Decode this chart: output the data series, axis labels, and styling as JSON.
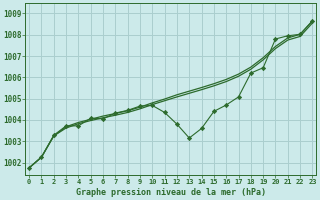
{
  "title": "Graphe pression niveau de la mer (hPa)",
  "bg_color": "#cceaea",
  "grid_color": "#aacece",
  "line_color": "#2d6b2d",
  "ylim": [
    1001.4,
    1009.5
  ],
  "yticks": [
    1002,
    1003,
    1004,
    1005,
    1006,
    1007,
    1008,
    1009
  ],
  "xlim": [
    -0.3,
    23.3
  ],
  "smooth1_x": [
    0,
    1,
    2,
    3,
    4,
    5,
    6,
    7,
    8,
    9,
    10,
    11,
    12,
    13,
    14,
    15,
    16,
    17,
    18,
    19,
    20,
    21,
    22,
    23
  ],
  "smooth1_y": [
    1001.75,
    1002.25,
    1003.25,
    1003.62,
    1003.82,
    1003.97,
    1004.1,
    1004.22,
    1004.35,
    1004.52,
    1004.72,
    1004.9,
    1005.08,
    1005.25,
    1005.42,
    1005.6,
    1005.8,
    1006.05,
    1006.38,
    1006.82,
    1007.35,
    1007.75,
    1007.92,
    1008.55
  ],
  "smooth2_x": [
    0,
    1,
    2,
    3,
    4,
    5,
    6,
    7,
    8,
    9,
    10,
    11,
    12,
    13,
    14,
    15,
    16,
    17,
    18,
    19,
    20,
    21,
    22,
    23
  ],
  "smooth2_y": [
    1001.75,
    1002.25,
    1003.25,
    1003.68,
    1003.88,
    1004.03,
    1004.18,
    1004.3,
    1004.43,
    1004.6,
    1004.8,
    1004.98,
    1005.18,
    1005.35,
    1005.52,
    1005.7,
    1005.9,
    1006.15,
    1006.48,
    1006.92,
    1007.45,
    1007.85,
    1008.02,
    1008.65
  ],
  "zigzag_x": [
    0,
    1,
    2,
    3,
    4,
    5,
    6,
    7,
    8,
    9,
    10,
    11,
    12,
    13,
    14,
    15,
    16,
    17,
    18,
    19,
    20,
    21,
    22,
    23
  ],
  "zigzag_y": [
    1001.75,
    1002.25,
    1003.28,
    1003.72,
    1003.72,
    1004.08,
    1004.05,
    1004.32,
    1004.45,
    1004.65,
    1004.68,
    1004.35,
    1003.8,
    1003.15,
    1003.6,
    1004.4,
    1004.7,
    1005.08,
    1006.2,
    1006.45,
    1007.8,
    1007.95,
    1008.02,
    1008.65
  ]
}
